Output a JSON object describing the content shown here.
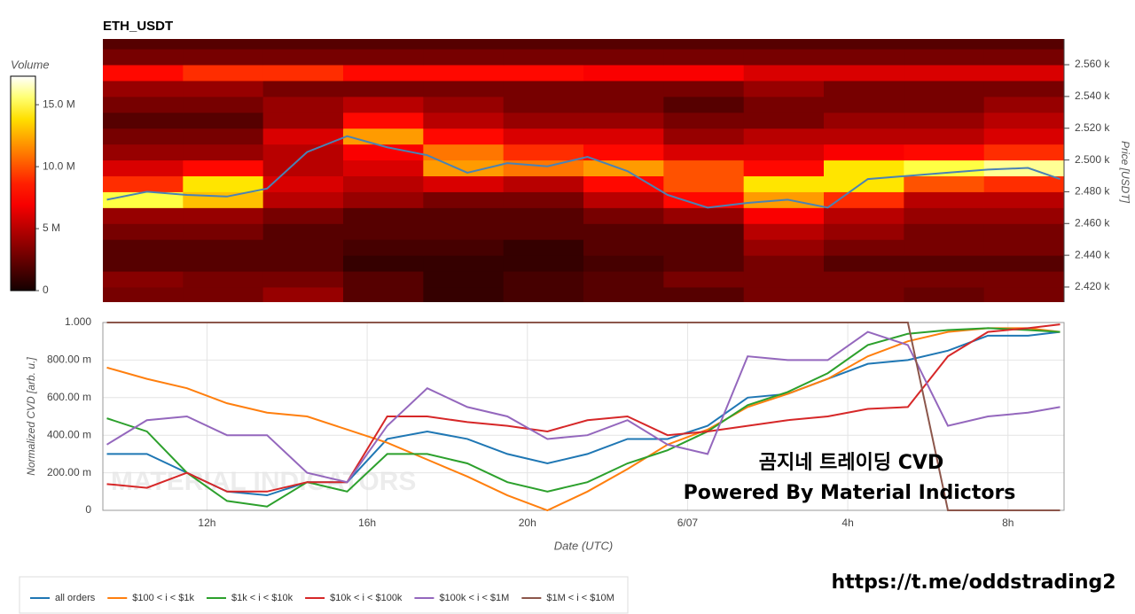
{
  "chart_data": [
    {
      "type": "heatmap",
      "title": "ETH_USDT",
      "y_label": "Price [USDT]",
      "colorbar_label": "Volume",
      "x_bins": [
        9.4,
        11.4,
        13.4,
        15.4,
        17.4,
        19.4,
        21.4,
        23.4,
        25.4,
        27.4,
        29.4,
        31.4,
        33.4
      ],
      "y_bins": [
        2410,
        2420,
        2430,
        2440,
        2450,
        2460,
        2470,
        2480,
        2490,
        2500,
        2510,
        2520,
        2530,
        2540,
        2550,
        2560,
        2570,
        2580
      ],
      "z": [
        [
          3000000.0,
          3000000.0,
          4000000.0,
          2000000.0,
          1000000.0,
          1500000.0,
          2000000.0,
          2000000.0,
          3000000.0,
          3000000.0,
          2500000.0,
          3000000.0
        ],
        [
          3500000.0,
          3000000.0,
          3000000.0,
          2000000.0,
          1000000.0,
          1500000.0,
          2000000.0,
          3000000.0,
          3000000.0,
          3000000.0,
          3000000.0,
          3000000.0
        ],
        [
          2000000.0,
          2000000.0,
          2000000.0,
          1000000.0,
          1000000.0,
          1000000.0,
          1500000.0,
          2000000.0,
          3000000.0,
          2000000.0,
          2000000.0,
          2000000.0
        ],
        [
          2000000.0,
          2000000.0,
          2000000.0,
          1500000.0,
          1500000.0,
          1000000.0,
          2000000.0,
          2000000.0,
          4000000.0,
          3000000.0,
          3000000.0,
          3000000.0
        ],
        [
          3000000.0,
          3000000.0,
          2000000.0,
          2000000.0,
          2000000.0,
          2000000.0,
          2000000.0,
          2000000.0,
          5000000.0,
          4000000.0,
          3000000.0,
          3000000.0
        ],
        [
          4000000.0,
          4000000.0,
          3000000.0,
          2000000.0,
          2000000.0,
          2000000.0,
          3000000.0,
          4000000.0,
          7000000.0,
          5000000.0,
          4000000.0,
          4000000.0
        ],
        [
          15000000.0,
          13000000.0,
          5000000.0,
          4000000.0,
          3000000.0,
          3000000.0,
          5000000.0,
          8000000.0,
          12000000.0,
          9000000.0,
          5000000.0,
          5000000.0
        ],
        [
          9000000.0,
          14000000.0,
          6000000.0,
          5000000.0,
          6000000.0,
          5000000.0,
          8000000.0,
          10000000.0,
          14000000.0,
          14000000.0,
          10000000.0,
          9000000.0
        ],
        [
          6000000.0,
          8000000.0,
          5000000.0,
          6000000.0,
          12000000.0,
          11000000.0,
          12000000.0,
          10000000.0,
          8000000.0,
          14000000.0,
          15000000.0,
          16000000.0
        ],
        [
          4000000.0,
          4000000.0,
          5000000.0,
          7000000.0,
          11000000.0,
          9000000.0,
          8000000.0,
          6000000.0,
          6000000.0,
          7000000.0,
          8000000.0,
          9000000.0
        ],
        [
          3000000.0,
          3000000.0,
          6000000.0,
          12000000.0,
          8000000.0,
          6000000.0,
          6000000.0,
          4000000.0,
          5000000.0,
          5000000.0,
          5000000.0,
          6000000.0
        ],
        [
          2000000.0,
          2000000.0,
          4000000.0,
          8000000.0,
          5000000.0,
          4000000.0,
          4000000.0,
          3000000.0,
          3000000.0,
          4000000.0,
          4000000.0,
          5000000.0
        ],
        [
          3000000.0,
          3000000.0,
          4000000.0,
          5000000.0,
          4000000.0,
          3000000.0,
          3000000.0,
          2000000.0,
          3000000.0,
          3000000.0,
          3000000.0,
          4000000.0
        ],
        [
          4000000.0,
          4000000.0,
          3000000.0,
          3000000.0,
          3000000.0,
          3000000.0,
          3000000.0,
          3000000.0,
          4000000.0,
          3000000.0,
          3000000.0,
          3000000.0
        ],
        [
          8000000.0,
          9000000.0,
          9000000.0,
          8000000.0,
          8000000.0,
          8000000.0,
          7000000.0,
          7000000.0,
          6000000.0,
          6000000.0,
          6000000.0,
          6000000.0
        ],
        [
          3000000.0,
          3000000.0,
          3000000.0,
          3000000.0,
          3000000.0,
          3000000.0,
          3000000.0,
          3000000.0,
          3000000.0,
          3000000.0,
          3000000.0,
          3000000.0
        ],
        [
          2000000.0,
          2000000.0,
          2000000.0,
          2000000.0,
          2000000.0,
          2000000.0,
          2000000.0,
          2000000.0,
          2000000.0,
          2000000.0,
          2000000.0,
          2000000.0
        ]
      ],
      "xlim": [
        9.4,
        33.4
      ],
      "ylim": [
        2410.5,
        2576.2
      ],
      "yticks": [
        {
          "value": 2420,
          "label": "2.420 k"
        },
        {
          "value": 2440,
          "label": "2.440 k"
        },
        {
          "value": 2460,
          "label": "2.460 k"
        },
        {
          "value": 2480,
          "label": "2.480 k"
        },
        {
          "value": 2500,
          "label": "2.500 k"
        },
        {
          "value": 2520,
          "label": "2.520 k"
        },
        {
          "value": 2540,
          "label": "2.540 k"
        },
        {
          "value": 2560,
          "label": "2.560 k"
        }
      ],
      "clim": [
        0,
        17300000
      ],
      "cticks": [
        0,
        {
          "value": 5000000,
          "label": "5 M"
        },
        {
          "value": 10000000,
          "label": "10.0 M"
        },
        {
          "value": 15000000,
          "label": "15.0 M"
        }
      ],
      "price_line": {
        "color": "#4a82b4",
        "x": [
          9.5,
          10.5,
          11.5,
          12.5,
          13.5,
          14.5,
          15.5,
          16.5,
          17.5,
          18.5,
          19.5,
          20.5,
          21.5,
          22.5,
          23.5,
          24.5,
          25.5,
          26.5,
          27.5,
          28.5,
          29.5,
          30.5,
          31.5,
          32.5,
          33.3
        ],
        "values": [
          2475,
          2480,
          2478,
          2477,
          2482,
          2505,
          2515,
          2508,
          2503,
          2492,
          2498,
          2496,
          2502,
          2493,
          2478,
          2470,
          2473,
          2475,
          2470,
          2488,
          2490,
          2492,
          2494,
          2495,
          2488
        ]
      }
    },
    {
      "type": "line",
      "x_label": "Date (UTC)",
      "y_label": "Normalized CVD [arb. u.]",
      "x": [
        9.5,
        10.5,
        11.5,
        12.5,
        13.5,
        14.5,
        15.5,
        16.5,
        17.5,
        18.5,
        19.5,
        20.5,
        21.5,
        22.5,
        23.5,
        24.5,
        25.5,
        26.5,
        27.5,
        28.5,
        29.5,
        30.5,
        31.5,
        32.5,
        33.3
      ],
      "xlim": [
        9.4,
        33.4
      ],
      "xticks": [
        {
          "value": 12,
          "label": "12h"
        },
        {
          "value": 16,
          "label": "16h"
        },
        {
          "value": 20,
          "label": "20h"
        },
        {
          "value": 24,
          "label": "6/07"
        },
        {
          "value": 28,
          "label": "4h"
        },
        {
          "value": 32,
          "label": "8h"
        }
      ],
      "ylim": [
        0,
        1
      ],
      "yticks": [
        0,
        {
          "value": 0.2,
          "label": "200.00 m"
        },
        {
          "value": 0.4,
          "label": "400.00 m"
        },
        {
          "value": 0.6,
          "label": "600.00 m"
        },
        {
          "value": 0.8,
          "label": "800.00 m"
        },
        {
          "value": 1,
          "label": "1.000"
        }
      ],
      "grid": true,
      "series": [
        {
          "name": "all orders",
          "color": "#1f77b4",
          "values": [
            0.3,
            0.3,
            0.2,
            0.1,
            0.08,
            0.15,
            0.15,
            0.38,
            0.42,
            0.38,
            0.3,
            0.25,
            0.3,
            0.38,
            0.38,
            0.45,
            0.6,
            0.62,
            0.7,
            0.78,
            0.8,
            0.85,
            0.93,
            0.93,
            0.95
          ]
        },
        {
          "name": "$100 < i < $1k",
          "color": "#ff7f0e",
          "values": [
            0.76,
            0.7,
            0.65,
            0.57,
            0.52,
            0.5,
            0.43,
            0.36,
            0.27,
            0.18,
            0.08,
            0,
            0.1,
            0.22,
            0.35,
            0.43,
            0.55,
            0.62,
            0.7,
            0.82,
            0.9,
            0.95,
            0.97,
            0.97,
            0.95
          ]
        },
        {
          "name": "$1k < i < $10k",
          "color": "#2ca02c",
          "values": [
            0.49,
            0.42,
            0.2,
            0.05,
            0.02,
            0.15,
            0.1,
            0.3,
            0.3,
            0.25,
            0.15,
            0.1,
            0.15,
            0.25,
            0.32,
            0.42,
            0.56,
            0.63,
            0.73,
            0.88,
            0.94,
            0.96,
            0.97,
            0.96,
            0.95
          ]
        },
        {
          "name": "$10k < i < $100k",
          "color": "#d62728",
          "values": [
            0.14,
            0.12,
            0.2,
            0.1,
            0.1,
            0.15,
            0.15,
            0.5,
            0.5,
            0.47,
            0.45,
            0.42,
            0.48,
            0.5,
            0.4,
            0.42,
            0.45,
            0.48,
            0.5,
            0.54,
            0.55,
            0.82,
            0.95,
            0.97,
            0.99
          ]
        },
        {
          "name": "$100k < i < $1M",
          "color": "#9467bd",
          "values": [
            0.35,
            0.48,
            0.5,
            0.4,
            0.4,
            0.2,
            0.15,
            0.45,
            0.65,
            0.55,
            0.5,
            0.38,
            0.4,
            0.48,
            0.35,
            0.3,
            0.82,
            0.8,
            0.8,
            0.95,
            0.88,
            0.45,
            0.5,
            0.52,
            0.55
          ]
        },
        {
          "name": "$1M < i < $10M",
          "color": "#8c564b",
          "values": [
            1,
            1,
            1,
            1,
            1,
            1,
            1,
            1,
            1,
            1,
            1,
            1,
            1,
            1,
            1,
            1,
            1,
            1,
            1,
            1,
            1,
            0,
            0,
            0,
            0
          ]
        }
      ],
      "annotations": [
        "곰지네 트레이딩 CVD",
        "Powered By Material Indictors"
      ],
      "watermark": "MATERIAL INDICATORS"
    }
  ],
  "footer": {
    "url": "https://t.me/oddstrading2"
  }
}
